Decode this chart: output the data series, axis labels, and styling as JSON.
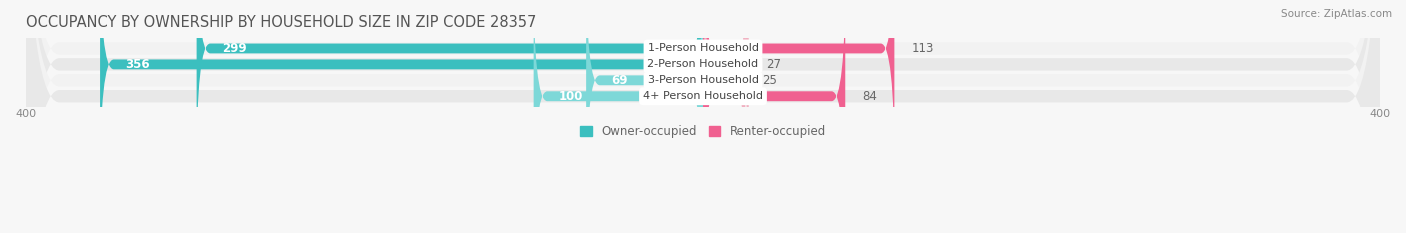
{
  "title": "OCCUPANCY BY OWNERSHIP BY HOUSEHOLD SIZE IN ZIP CODE 28357",
  "source": "Source: ZipAtlas.com",
  "categories": [
    "1-Person Household",
    "2-Person Household",
    "3-Person Household",
    "4+ Person Household"
  ],
  "owner_values": [
    299,
    356,
    69,
    100
  ],
  "renter_values": [
    113,
    27,
    25,
    84
  ],
  "owner_colors": [
    "#3bbfbf",
    "#3bbfbf",
    "#7dd8d8",
    "#7dd8d8"
  ],
  "renter_colors": [
    "#f06090",
    "#f0b0c0",
    "#f0b0c0",
    "#f06090"
  ],
  "row_bg_color_light": "#f2f2f2",
  "row_bg_color_dark": "#e8e8e8",
  "label_box_color": "#ffffff",
  "axis_max": 400,
  "legend_owner": "Owner-occupied",
  "legend_renter": "Renter-occupied",
  "owner_color_legend": "#3bbfbf",
  "renter_color_legend": "#f06090",
  "title_fontsize": 10.5,
  "source_fontsize": 7.5,
  "bar_label_fontsize": 8.5,
  "category_fontsize": 8,
  "axis_label_fontsize": 8,
  "bar_height": 0.62,
  "figsize": [
    14.06,
    2.33
  ],
  "dpi": 100
}
